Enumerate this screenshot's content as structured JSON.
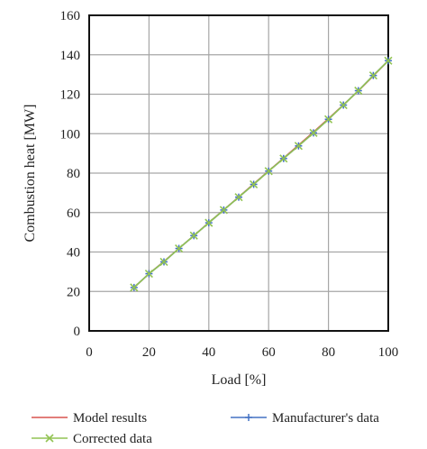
{
  "chart_data": {
    "type": "line",
    "xlabel": "Load [%]",
    "ylabel": "Combustion heat [MW]",
    "xlim": [
      0,
      100
    ],
    "ylim": [
      0,
      160
    ],
    "x_ticks": [
      "0",
      "20",
      "40",
      "60",
      "80",
      "100"
    ],
    "y_ticks": [
      "0",
      "20",
      "40",
      "60",
      "80",
      "100",
      "120",
      "140",
      "160"
    ],
    "grid": true,
    "legend_position": "bottom",
    "series": [
      {
        "name": "Model results",
        "color": "#d9534f",
        "marker": "none",
        "x": [
          15,
          20,
          25,
          30,
          35,
          40,
          45,
          50,
          55,
          60,
          65,
          70,
          75,
          80,
          85,
          90,
          95,
          100
        ],
        "y": [
          22,
          29,
          35.2,
          41.8,
          48.3,
          54.9,
          61.4,
          67.9,
          74.5,
          81.1,
          87.6,
          94.2,
          100.8,
          107.6,
          114.6,
          121.7,
          129.3,
          137
        ]
      },
      {
        "name": "Manufacturer's data",
        "color": "#4472c4",
        "marker": "plus",
        "x": [
          15,
          20,
          25,
          30,
          35,
          40,
          45,
          50,
          55,
          60,
          65,
          70,
          75,
          80,
          85,
          90,
          95,
          100
        ],
        "y": [
          22,
          29,
          35,
          41.8,
          48.3,
          54.8,
          61.3,
          67.8,
          74.3,
          81,
          87.4,
          93.8,
          100.4,
          107.3,
          114.5,
          121.8,
          129.5,
          137
        ]
      },
      {
        "name": "Corrected data",
        "color": "#92c353",
        "marker": "x",
        "x": [
          15,
          20,
          25,
          30,
          35,
          40,
          45,
          50,
          55,
          60,
          65,
          70,
          75,
          80,
          85,
          90,
          95,
          100
        ],
        "y": [
          22,
          29,
          35,
          41.8,
          48.3,
          54.8,
          61.3,
          67.8,
          74.3,
          81,
          87.4,
          93.8,
          100.4,
          107.3,
          114.5,
          121.8,
          129.5,
          137
        ]
      }
    ]
  }
}
